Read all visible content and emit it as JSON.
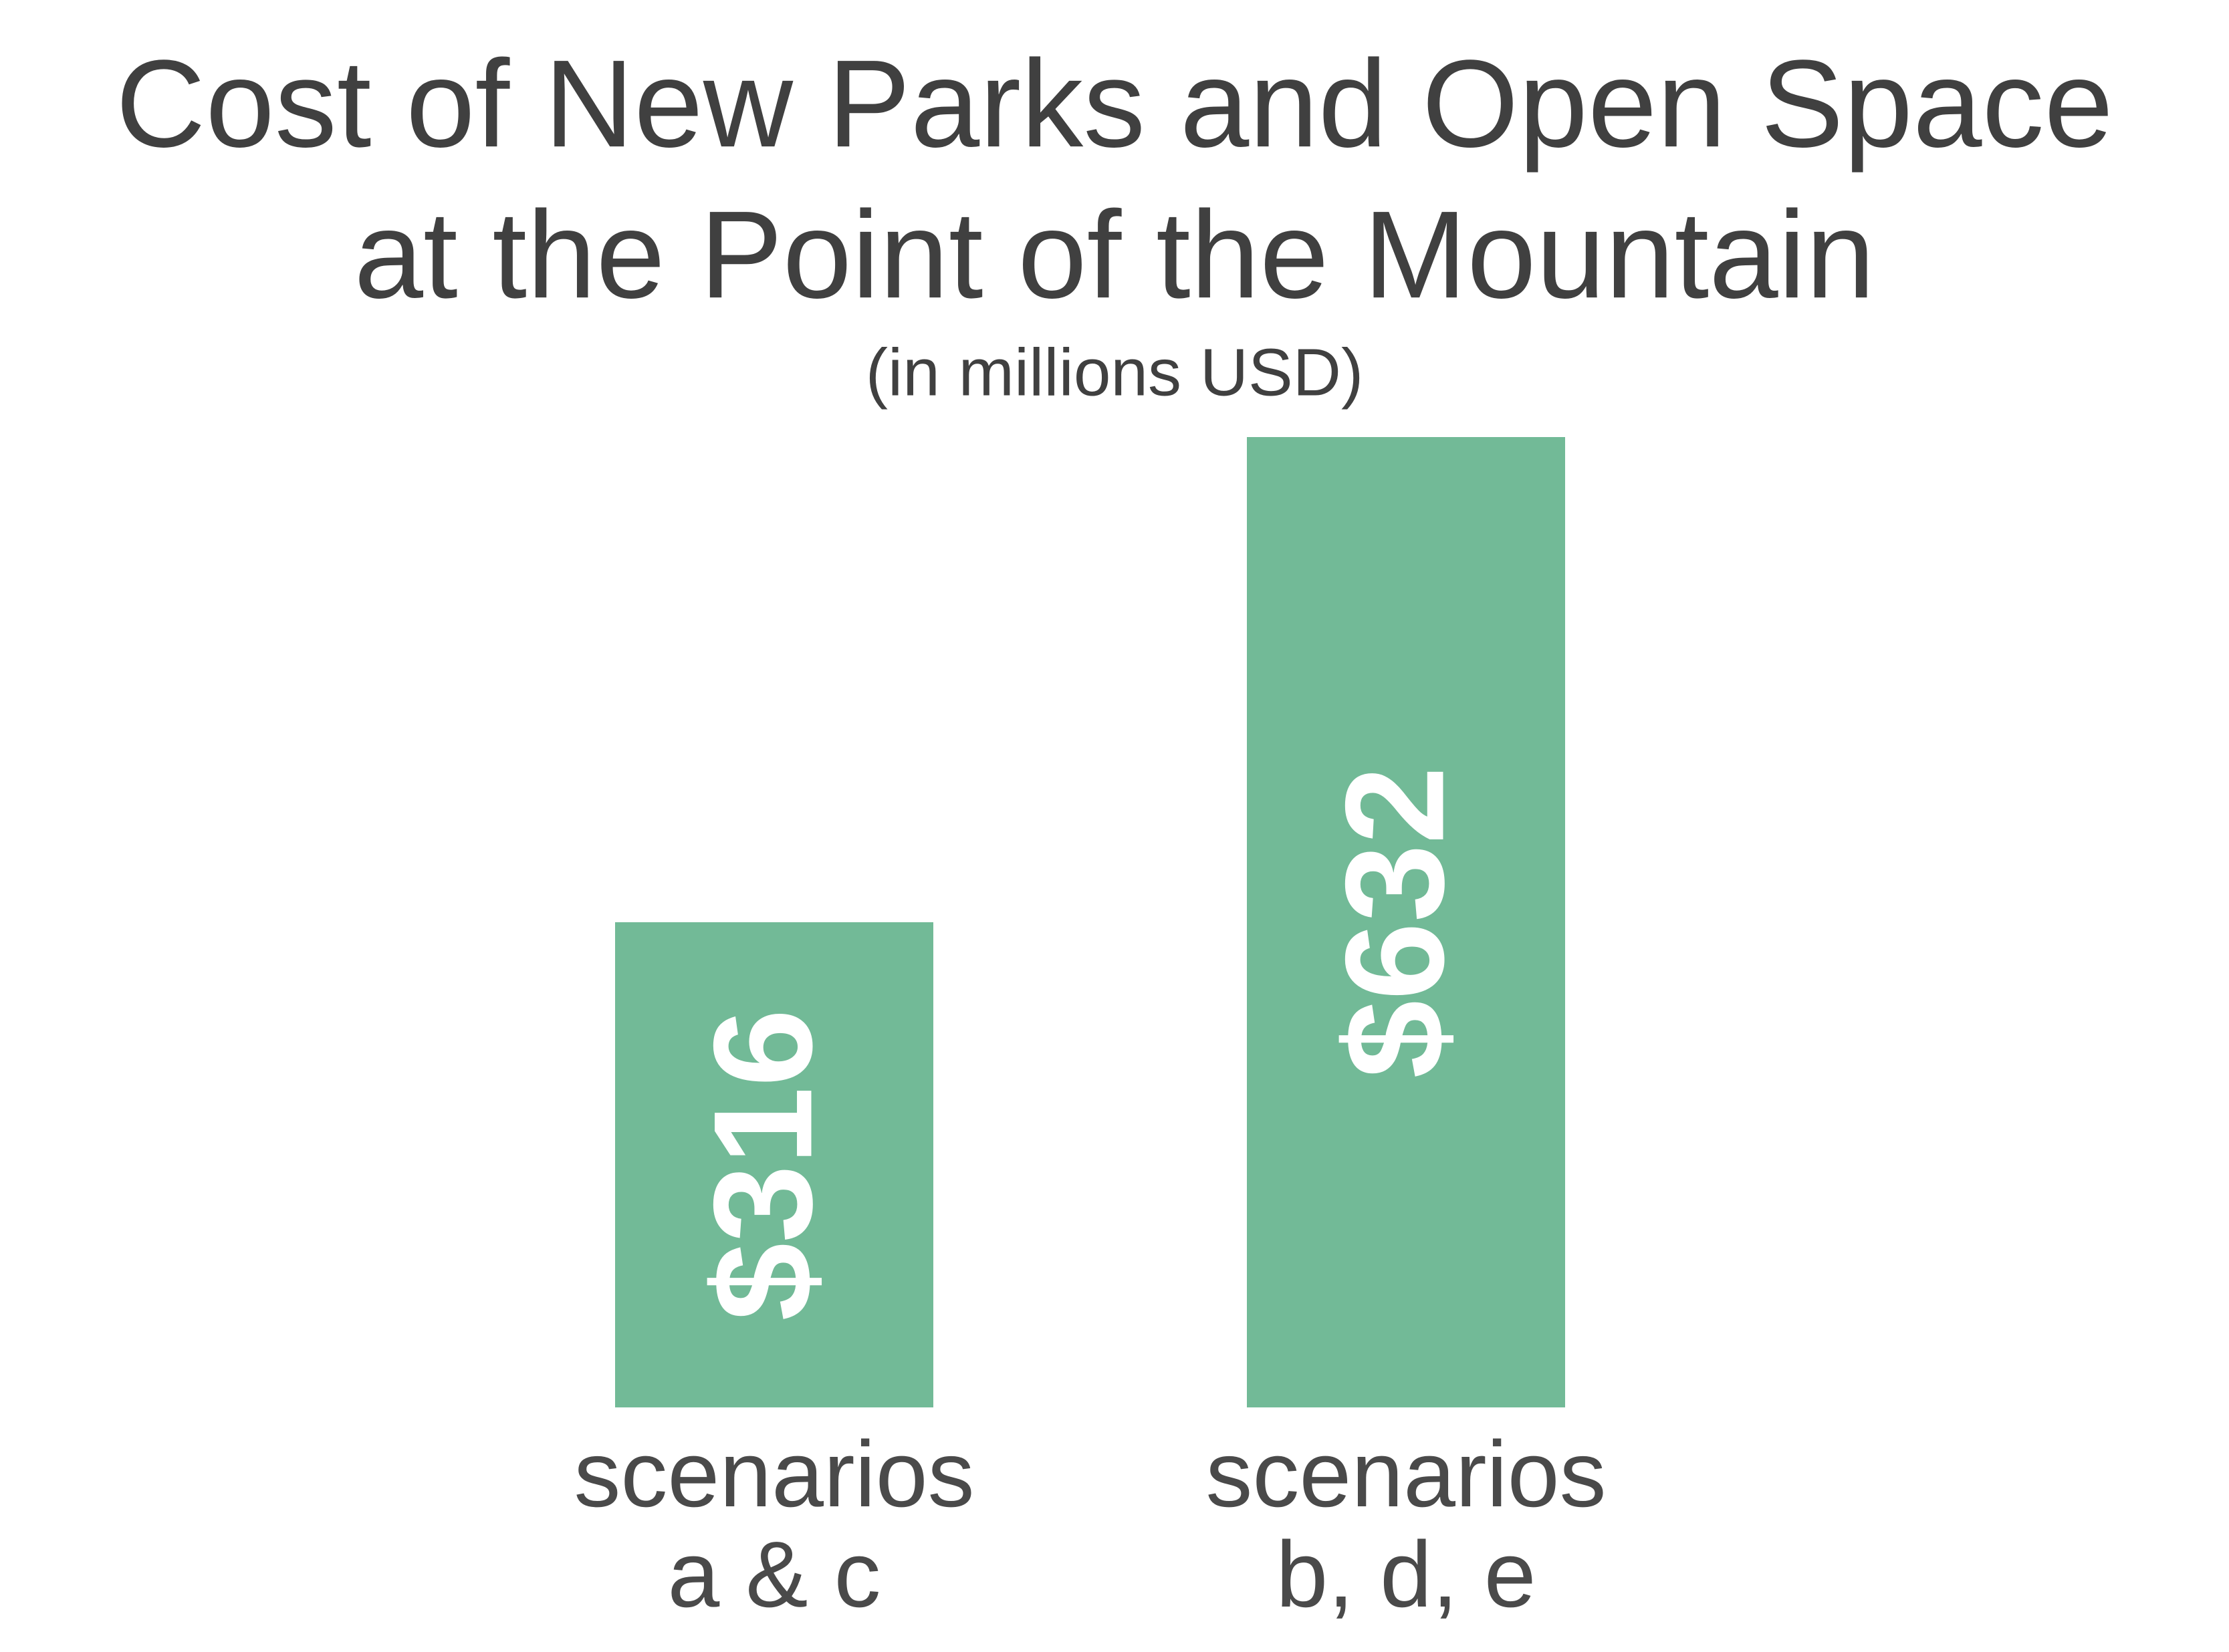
{
  "chart_data": {
    "type": "bar",
    "title": [
      "Cost of New Parks and Open Space",
      "at the Point of the Mountain"
    ],
    "subtitle": "(in millions USD)",
    "categories": [
      [
        "scenarios",
        "a & c"
      ],
      [
        "scenarios",
        "b, d, e"
      ]
    ],
    "values": [
      316,
      632
    ],
    "value_labels": [
      "$316",
      "$632"
    ],
    "color": "#72ba97"
  }
}
